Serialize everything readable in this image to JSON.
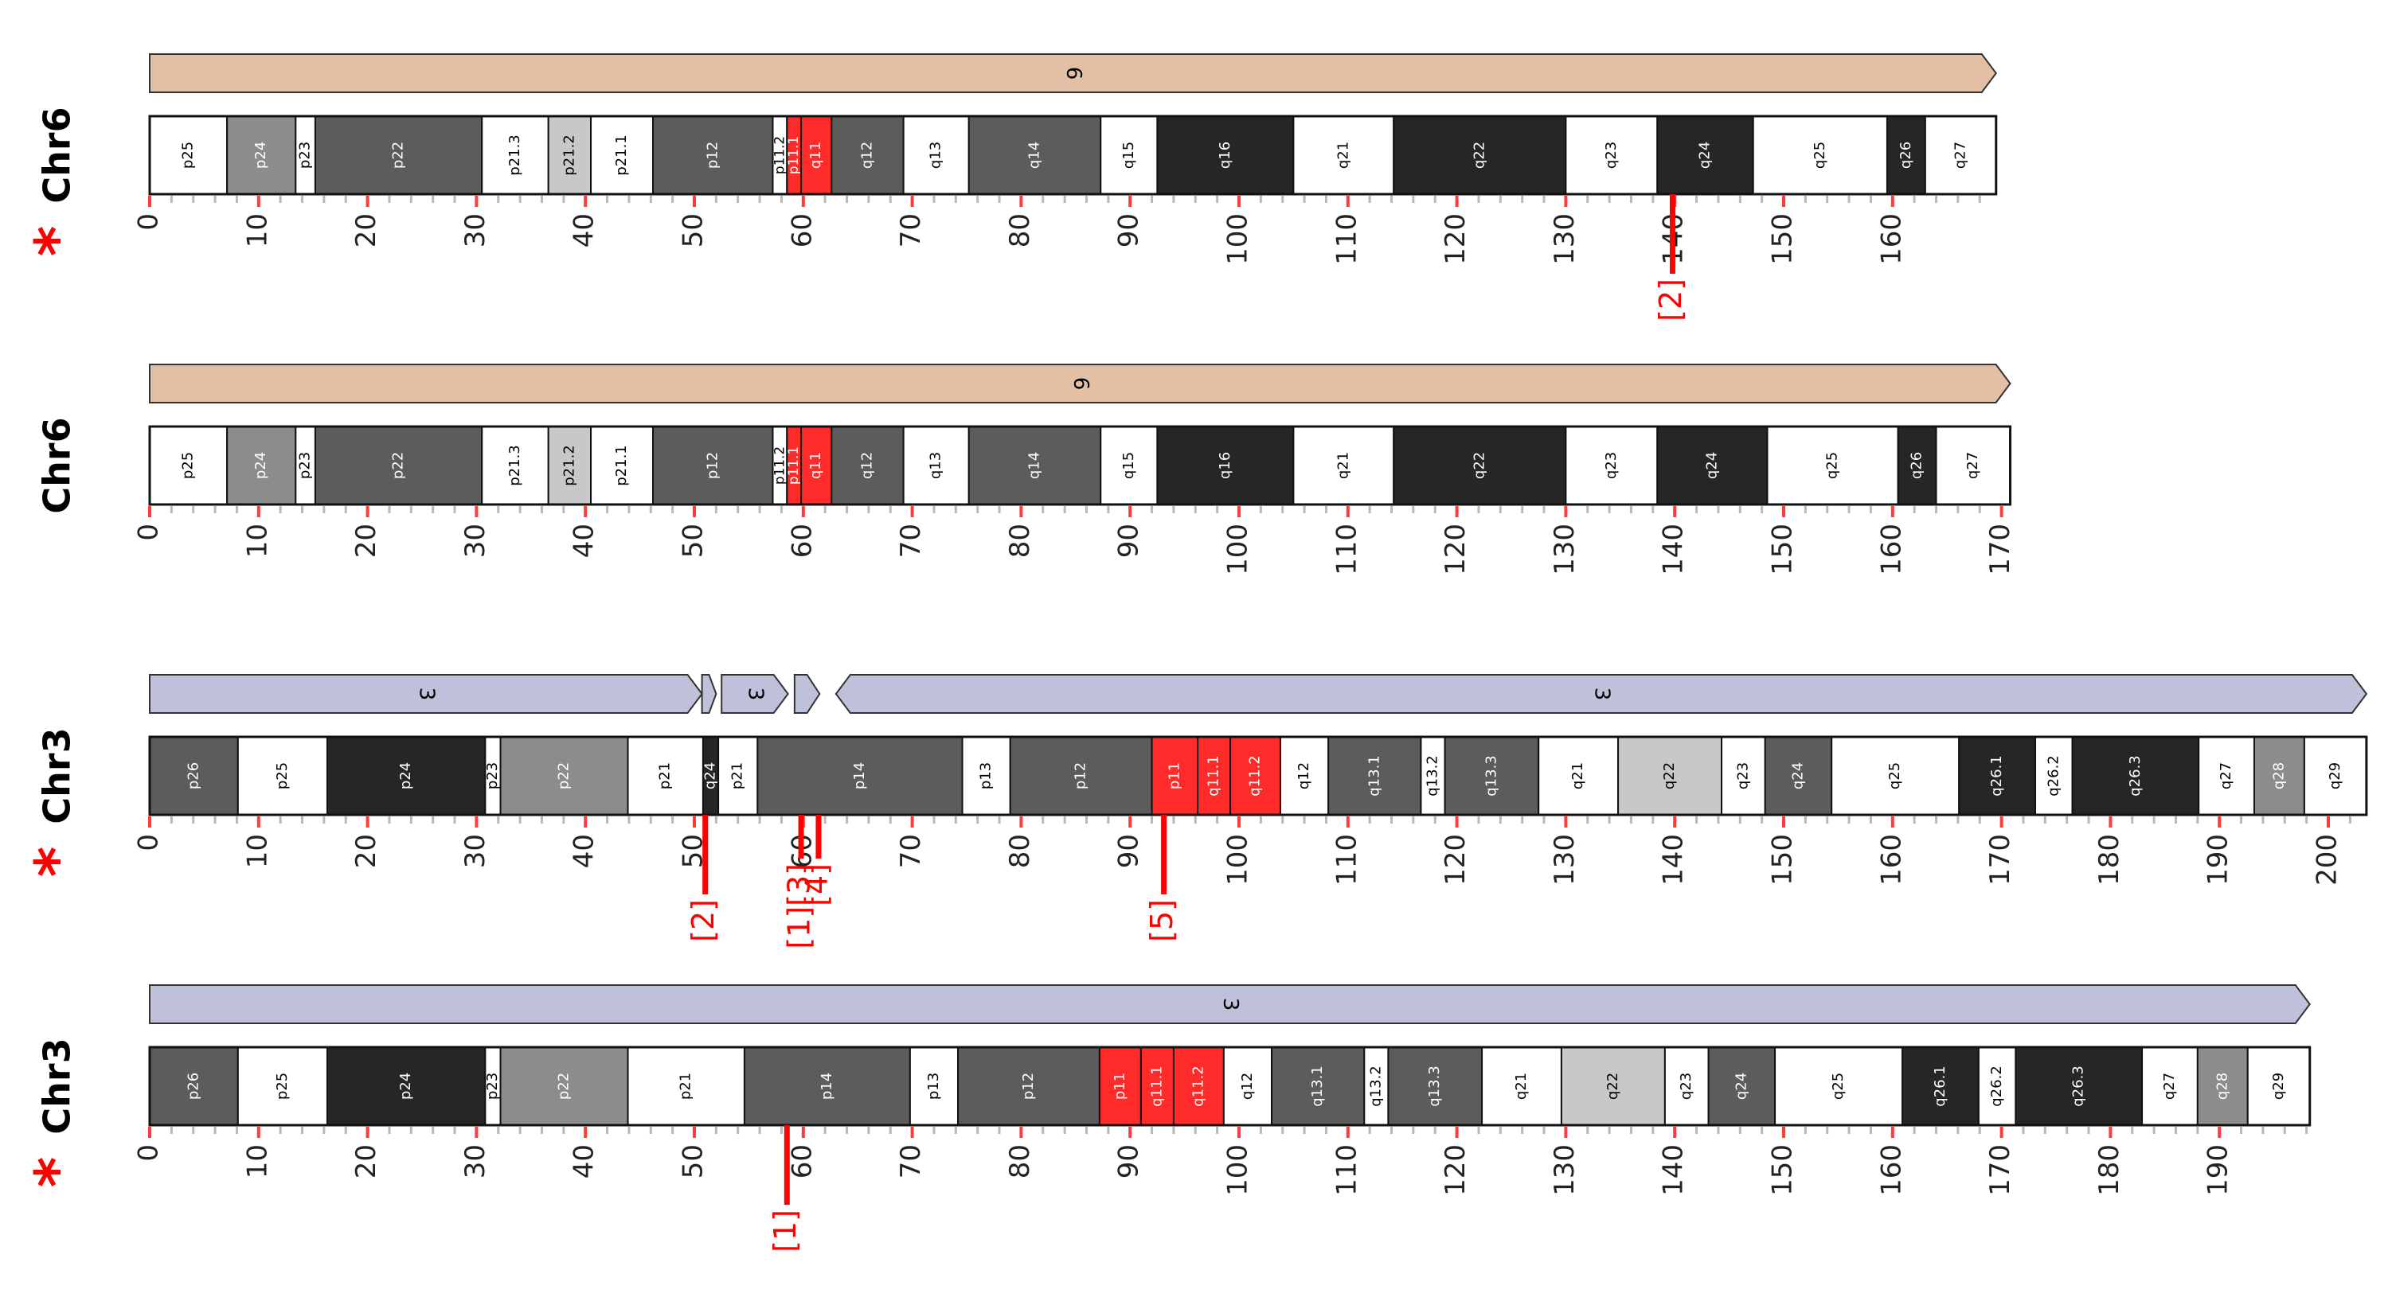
{
  "colors": {
    "chr6_derivation": "#e2bfa5",
    "chr3_derivation": "#bfc0d9",
    "band_white": "#ffffff",
    "band_gpos25": "#c8c8c8",
    "band_gpos50": "#8c8c8c",
    "band_gpos75": "#5c5c5c",
    "band_gpos100": "#262626",
    "band_highlight": "#ff2a2a",
    "tick_major": "#ff3b3b",
    "tick_minor": "#b8b8b8",
    "breakpoint": "#ff0000",
    "text": "#000000"
  },
  "tracks": [
    {
      "label": "Chr6",
      "starred": true,
      "length": 169.5,
      "max_label": null,
      "derivation": [
        {
          "label": "6",
          "start": 0,
          "end": 169.5
        }
      ],
      "bands": [
        {
          "name": "p25",
          "start": 0,
          "end": 7.1,
          "stain": "gneg"
        },
        {
          "name": "p24",
          "start": 7.1,
          "end": 13.4,
          "stain": "gpos50"
        },
        {
          "name": "p23",
          "start": 13.4,
          "end": 15.2,
          "stain": "gneg"
        },
        {
          "name": "p22",
          "start": 15.2,
          "end": 30.5,
          "stain": "gpos75"
        },
        {
          "name": "p21.3",
          "start": 30.5,
          "end": 36.6,
          "stain": "gneg"
        },
        {
          "name": "p21.2",
          "start": 36.6,
          "end": 40.5,
          "stain": "gpos25"
        },
        {
          "name": "p21.1",
          "start": 40.5,
          "end": 46.2,
          "stain": "gneg"
        },
        {
          "name": "p12",
          "start": 46.2,
          "end": 57.2,
          "stain": "gpos75"
        },
        {
          "name": "p11.2",
          "start": 57.2,
          "end": 58.5,
          "stain": "gneg"
        },
        {
          "name": "p11.1",
          "start": 58.5,
          "end": 59.8,
          "stain": "highlight"
        },
        {
          "name": "q11",
          "start": 59.8,
          "end": 62.6,
          "stain": "highlight"
        },
        {
          "name": "q12",
          "start": 62.6,
          "end": 69.2,
          "stain": "gpos75"
        },
        {
          "name": "q13",
          "start": 69.2,
          "end": 75.2,
          "stain": "gneg"
        },
        {
          "name": "q14",
          "start": 75.2,
          "end": 87.3,
          "stain": "gpos75"
        },
        {
          "name": "q15",
          "start": 87.3,
          "end": 92.5,
          "stain": "gneg"
        },
        {
          "name": "q16",
          "start": 92.5,
          "end": 105.0,
          "stain": "gpos100"
        },
        {
          "name": "q21",
          "start": 105.0,
          "end": 114.2,
          "stain": "gneg"
        },
        {
          "name": "q22",
          "start": 114.2,
          "end": 130.0,
          "stain": "gpos100"
        },
        {
          "name": "q23",
          "start": 130.0,
          "end": 138.4,
          "stain": "gneg"
        },
        {
          "name": "q24",
          "start": 138.4,
          "end": 147.2,
          "stain": "gpos100"
        },
        {
          "name": "q25",
          "start": 147.2,
          "end": 159.5,
          "stain": "gneg"
        },
        {
          "name": "q26",
          "start": 159.5,
          "end": 163.0,
          "stain": "gpos100"
        },
        {
          "name": "q27",
          "start": 163.0,
          "end": 169.5,
          "stain": "gneg"
        }
      ],
      "breakpoints": [
        {
          "label": "[2]",
          "pos": 139.8
        }
      ]
    },
    {
      "label": "Chr6",
      "starred": false,
      "length": 170.8,
      "max_label": 170,
      "derivation": [
        {
          "label": "6",
          "start": 0,
          "end": 170.8
        }
      ],
      "bands": [
        {
          "name": "p25",
          "start": 0,
          "end": 7.1,
          "stain": "gneg"
        },
        {
          "name": "p24",
          "start": 7.1,
          "end": 13.4,
          "stain": "gpos50"
        },
        {
          "name": "p23",
          "start": 13.4,
          "end": 15.2,
          "stain": "gneg"
        },
        {
          "name": "p22",
          "start": 15.2,
          "end": 30.5,
          "stain": "gpos75"
        },
        {
          "name": "p21.3",
          "start": 30.5,
          "end": 36.6,
          "stain": "gneg"
        },
        {
          "name": "p21.2",
          "start": 36.6,
          "end": 40.5,
          "stain": "gpos25"
        },
        {
          "name": "p21.1",
          "start": 40.5,
          "end": 46.2,
          "stain": "gneg"
        },
        {
          "name": "p12",
          "start": 46.2,
          "end": 57.2,
          "stain": "gpos75"
        },
        {
          "name": "p11.2",
          "start": 57.2,
          "end": 58.5,
          "stain": "gneg"
        },
        {
          "name": "p11.1",
          "start": 58.5,
          "end": 59.8,
          "stain": "highlight"
        },
        {
          "name": "q11",
          "start": 59.8,
          "end": 62.6,
          "stain": "highlight"
        },
        {
          "name": "q12",
          "start": 62.6,
          "end": 69.2,
          "stain": "gpos75"
        },
        {
          "name": "q13",
          "start": 69.2,
          "end": 75.2,
          "stain": "gneg"
        },
        {
          "name": "q14",
          "start": 75.2,
          "end": 87.3,
          "stain": "gpos75"
        },
        {
          "name": "q15",
          "start": 87.3,
          "end": 92.5,
          "stain": "gneg"
        },
        {
          "name": "q16",
          "start": 92.5,
          "end": 105.0,
          "stain": "gpos100"
        },
        {
          "name": "q21",
          "start": 105.0,
          "end": 114.2,
          "stain": "gneg"
        },
        {
          "name": "q22",
          "start": 114.2,
          "end": 130.0,
          "stain": "gpos100"
        },
        {
          "name": "q23",
          "start": 130.0,
          "end": 138.4,
          "stain": "gneg"
        },
        {
          "name": "q24",
          "start": 138.4,
          "end": 148.5,
          "stain": "gpos100"
        },
        {
          "name": "q25",
          "start": 148.5,
          "end": 160.5,
          "stain": "gneg"
        },
        {
          "name": "q26",
          "start": 160.5,
          "end": 164.0,
          "stain": "gpos100"
        },
        {
          "name": "q27",
          "start": 164.0,
          "end": 170.8,
          "stain": "gneg"
        }
      ],
      "breakpoints": []
    },
    {
      "label": "Chr3",
      "starred": true,
      "length": 203.5,
      "max_label": 200,
      "derivation": [
        {
          "label": "3",
          "start": 0,
          "end": 50.7
        },
        {
          "label": "",
          "start": 50.7,
          "end": 52.0
        },
        {
          "label": "3",
          "start": 52.5,
          "end": 58.6
        },
        {
          "label": "",
          "start": 59.2,
          "end": 61.5
        },
        {
          "label": "3",
          "start": 63.0,
          "end": 203.5,
          "reverse": true
        }
      ],
      "bands": [
        {
          "name": "p26",
          "start": 0,
          "end": 8.1,
          "stain": "gpos75"
        },
        {
          "name": "p25",
          "start": 8.1,
          "end": 16.3,
          "stain": "gneg"
        },
        {
          "name": "p24",
          "start": 16.3,
          "end": 30.8,
          "stain": "gpos100"
        },
        {
          "name": "p23",
          "start": 30.8,
          "end": 32.2,
          "stain": "gneg"
        },
        {
          "name": "p22",
          "start": 32.2,
          "end": 43.9,
          "stain": "gpos50"
        },
        {
          "name": "p21",
          "start": 43.9,
          "end": 50.8,
          "stain": "gneg"
        },
        {
          "name": "q24",
          "start": 50.8,
          "end": 52.2,
          "stain": "gpos100"
        },
        {
          "name": "p21",
          "start": 52.2,
          "end": 55.8,
          "stain": "gneg"
        },
        {
          "name": "p14",
          "start": 55.8,
          "end": 74.6,
          "stain": "gpos75"
        },
        {
          "name": "p13",
          "start": 74.6,
          "end": 79.0,
          "stain": "gneg"
        },
        {
          "name": "p12",
          "start": 79.0,
          "end": 92.0,
          "stain": "gpos75"
        },
        {
          "name": "p11",
          "start": 92.0,
          "end": 96.2,
          "stain": "highlight"
        },
        {
          "name": "q11.1",
          "start": 96.2,
          "end": 99.2,
          "stain": "highlight"
        },
        {
          "name": "q11.2",
          "start": 99.2,
          "end": 103.8,
          "stain": "highlight"
        },
        {
          "name": "q12",
          "start": 103.8,
          "end": 108.2,
          "stain": "gneg"
        },
        {
          "name": "q13.1",
          "start": 108.2,
          "end": 116.7,
          "stain": "gpos75"
        },
        {
          "name": "q13.2",
          "start": 116.7,
          "end": 118.9,
          "stain": "gneg"
        },
        {
          "name": "q13.3",
          "start": 118.9,
          "end": 127.5,
          "stain": "gpos75"
        },
        {
          "name": "q21",
          "start": 127.5,
          "end": 134.8,
          "stain": "gneg"
        },
        {
          "name": "q22",
          "start": 134.8,
          "end": 144.3,
          "stain": "gpos25"
        },
        {
          "name": "q23",
          "start": 144.3,
          "end": 148.3,
          "stain": "gneg"
        },
        {
          "name": "q24",
          "start": 148.3,
          "end": 154.4,
          "stain": "gpos75"
        },
        {
          "name": "q25",
          "start": 154.4,
          "end": 166.1,
          "stain": "gneg"
        },
        {
          "name": "q26.1",
          "start": 166.1,
          "end": 173.1,
          "stain": "gpos100"
        },
        {
          "name": "q26.2",
          "start": 173.1,
          "end": 176.5,
          "stain": "gneg"
        },
        {
          "name": "q26.3",
          "start": 176.5,
          "end": 188.1,
          "stain": "gpos100"
        },
        {
          "name": "q27",
          "start": 188.1,
          "end": 193.2,
          "stain": "gneg"
        },
        {
          "name": "q28",
          "start": 193.2,
          "end": 197.8,
          "stain": "gpos50"
        },
        {
          "name": "q29",
          "start": 197.8,
          "end": 203.5,
          "stain": "gneg"
        }
      ],
      "breakpoints": [
        {
          "label": "[2]",
          "pos": 51.0,
          "len": 1.0
        },
        {
          "label": "[1][3]",
          "pos": 59.8,
          "len": 0.55
        },
        {
          "label": "[4]",
          "pos": 61.4,
          "len": 0.55
        },
        {
          "label": "[5]",
          "pos": 93.1,
          "len": 1.0
        }
      ]
    },
    {
      "label": "Chr3",
      "starred": true,
      "length": 198.3,
      "max_label": 190,
      "derivation": [
        {
          "label": "3",
          "start": 0,
          "end": 198.3
        }
      ],
      "bands": [
        {
          "name": "p26",
          "start": 0,
          "end": 8.1,
          "stain": "gpos75"
        },
        {
          "name": "p25",
          "start": 8.1,
          "end": 16.3,
          "stain": "gneg"
        },
        {
          "name": "p24",
          "start": 16.3,
          "end": 30.8,
          "stain": "gpos100"
        },
        {
          "name": "p23",
          "start": 30.8,
          "end": 32.2,
          "stain": "gneg"
        },
        {
          "name": "p22",
          "start": 32.2,
          "end": 43.9,
          "stain": "gpos50"
        },
        {
          "name": "p21",
          "start": 43.9,
          "end": 54.6,
          "stain": "gneg"
        },
        {
          "name": "p14",
          "start": 54.6,
          "end": 69.8,
          "stain": "gpos75"
        },
        {
          "name": "p13",
          "start": 69.8,
          "end": 74.2,
          "stain": "gneg"
        },
        {
          "name": "p12",
          "start": 74.2,
          "end": 87.2,
          "stain": "gpos75"
        },
        {
          "name": "p11",
          "start": 87.2,
          "end": 91.0,
          "stain": "highlight"
        },
        {
          "name": "q11.1",
          "start": 91.0,
          "end": 94.0,
          "stain": "highlight"
        },
        {
          "name": "q11.2",
          "start": 94.0,
          "end": 98.6,
          "stain": "highlight"
        },
        {
          "name": "q12",
          "start": 98.6,
          "end": 103.0,
          "stain": "gneg"
        },
        {
          "name": "q13.1",
          "start": 103.0,
          "end": 111.5,
          "stain": "gpos75"
        },
        {
          "name": "q13.2",
          "start": 111.5,
          "end": 113.7,
          "stain": "gneg"
        },
        {
          "name": "q13.3",
          "start": 113.7,
          "end": 122.3,
          "stain": "gpos75"
        },
        {
          "name": "q21",
          "start": 122.3,
          "end": 129.6,
          "stain": "gneg"
        },
        {
          "name": "q22",
          "start": 129.6,
          "end": 139.1,
          "stain": "gpos25"
        },
        {
          "name": "q23",
          "start": 139.1,
          "end": 143.1,
          "stain": "gneg"
        },
        {
          "name": "q24",
          "start": 143.1,
          "end": 149.2,
          "stain": "gpos75"
        },
        {
          "name": "q25",
          "start": 149.2,
          "end": 160.9,
          "stain": "gneg"
        },
        {
          "name": "q26.1",
          "start": 160.9,
          "end": 167.9,
          "stain": "gpos100"
        },
        {
          "name": "q26.2",
          "start": 167.9,
          "end": 171.3,
          "stain": "gneg"
        },
        {
          "name": "q26.3",
          "start": 171.3,
          "end": 182.9,
          "stain": "gpos100"
        },
        {
          "name": "q27",
          "start": 182.9,
          "end": 188.0,
          "stain": "gneg"
        },
        {
          "name": "q28",
          "start": 188.0,
          "end": 192.6,
          "stain": "gpos50"
        },
        {
          "name": "q29",
          "start": 192.6,
          "end": 198.3,
          "stain": "gneg"
        }
      ],
      "breakpoints": [
        {
          "label": "[1]",
          "pos": 58.5
        }
      ]
    }
  ]
}
